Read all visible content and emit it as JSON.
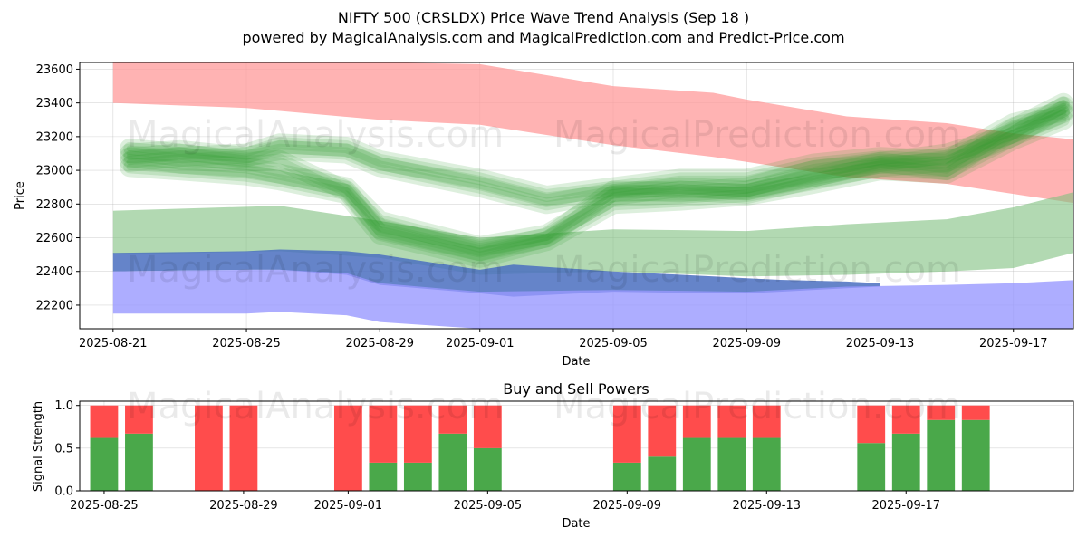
{
  "header": {
    "title": "NIFTY 500 (CRSLDX) Price Wave Trend Analysis (Sep 18 )",
    "subtitle": "powered by MagicalAnalysis.com and MagicalPrediction.com and Predict-Price.com"
  },
  "watermarks": [
    "MagicalAnalysis.com",
    "MagicalPrediction.com"
  ],
  "colors": {
    "upper_band": "#ff9999",
    "lower_band": "#9999ff",
    "middle_band": "#7fbf7f",
    "dark_band": "#4a6fc0",
    "wave": "#2e9a2e",
    "buy": "#4aa84a",
    "sell": "#ff4c4c"
  },
  "chart_data": [
    {
      "type": "area",
      "title": "",
      "xlabel": "Date",
      "ylabel": "Price",
      "x_ticks": [
        "2025-08-21",
        "2025-08-25",
        "2025-08-29",
        "2025-09-01",
        "2025-09-05",
        "2025-09-09",
        "2025-09-13",
        "2025-09-17"
      ],
      "y_ticks": [
        "22200",
        "22400",
        "22600",
        "22800",
        "23000",
        "23200",
        "23400",
        "23600"
      ],
      "ylim": [
        22060,
        23640
      ],
      "x_day_range": [
        -1.0,
        28.8
      ],
      "grid": true,
      "bands": [
        {
          "name": "upper-resistance-band",
          "color_key": "upper_band",
          "opacity": 0.75,
          "x": [
            0,
            4,
            8,
            11,
            15,
            18,
            19,
            22,
            25,
            27,
            29
          ],
          "upper": [
            23680,
            23660,
            23640,
            23630,
            23500,
            23460,
            23420,
            23320,
            23280,
            23220,
            23180
          ],
          "lower": [
            23400,
            23370,
            23300,
            23270,
            23150,
            23080,
            23050,
            22960,
            22920,
            22860,
            22800
          ]
        },
        {
          "name": "support-band-green",
          "color_key": "middle_band",
          "opacity": 0.6,
          "x": [
            0,
            5,
            8,
            11,
            15,
            19,
            22,
            25,
            27,
            29
          ],
          "upper": [
            22760,
            22790,
            22700,
            22600,
            22650,
            22640,
            22680,
            22710,
            22780,
            22880
          ],
          "lower": [
            22500,
            22520,
            22480,
            22380,
            22400,
            22370,
            22380,
            22400,
            22420,
            22520
          ]
        },
        {
          "name": "support-band-blue",
          "color_key": "dark_band",
          "opacity": 0.85,
          "x": [
            0,
            4,
            5,
            7,
            8,
            11,
            12,
            15,
            18,
            19,
            20,
            22,
            23
          ],
          "upper": [
            22510,
            22520,
            22530,
            22520,
            22500,
            22410,
            22440,
            22400,
            22370,
            22360,
            22350,
            22340,
            22330
          ],
          "lower": [
            22400,
            22410,
            22410,
            22380,
            22320,
            22270,
            22250,
            22280,
            22270,
            22270,
            22280,
            22300,
            22310
          ]
        },
        {
          "name": "lower-support-band",
          "color_key": "lower_band",
          "opacity": 0.8,
          "x": [
            0,
            4,
            5,
            7,
            8,
            11,
            15,
            19,
            22,
            25,
            27,
            29
          ],
          "upper": [
            22400,
            22410,
            22410,
            22390,
            22330,
            22280,
            22290,
            22280,
            22310,
            22320,
            22330,
            22350
          ],
          "lower": [
            22150,
            22150,
            22160,
            22140,
            22100,
            22060,
            22060,
            22060,
            22060,
            22060,
            22060,
            22060
          ]
        }
      ],
      "waves": [
        {
          "x": [
            0.5,
            2,
            4,
            5,
            7,
            8,
            11,
            13,
            15,
            17,
            19,
            21,
            23,
            25,
            27,
            28.5
          ],
          "y": [
            23100,
            23120,
            23080,
            23120,
            23100,
            23020,
            22900,
            22800,
            22870,
            22880,
            22860,
            22950,
            23020,
            23050,
            23200,
            23380
          ]
        },
        {
          "x": [
            0.5,
            2,
            4,
            5,
            7,
            8,
            11,
            13,
            15,
            17,
            19,
            21,
            23,
            25,
            27,
            28.5
          ],
          "y": [
            23080,
            23040,
            23020,
            22980,
            22900,
            22700,
            22550,
            22620,
            22850,
            22900,
            22880,
            22960,
            23050,
            23100,
            23220,
            23340
          ]
        },
        {
          "x": [
            0.5,
            2,
            4,
            5,
            7,
            8,
            11,
            13,
            15,
            17,
            19,
            21,
            23,
            25,
            27,
            28.5
          ],
          "y": [
            23130,
            23100,
            23050,
            23060,
            22880,
            22650,
            22520,
            22600,
            22880,
            22870,
            22900,
            23000,
            23050,
            23000,
            23250,
            23400
          ]
        },
        {
          "x": [
            0.5,
            2,
            4,
            5,
            7,
            8,
            11,
            13,
            15,
            17,
            19,
            21,
            23,
            25,
            27,
            28.5
          ],
          "y": [
            23050,
            23080,
            23100,
            23160,
            23140,
            23060,
            22950,
            22850,
            22900,
            22950,
            22950,
            23040,
            23080,
            23060,
            23280,
            23350
          ]
        },
        {
          "x": [
            0.5,
            2,
            4,
            5,
            7,
            8,
            11,
            13,
            15,
            17,
            19,
            21,
            23,
            25,
            27,
            28.5
          ],
          "y": [
            23020,
            23000,
            22970,
            22940,
            22860,
            22620,
            22480,
            22580,
            22800,
            22820,
            22850,
            22920,
            23000,
            22980,
            23180,
            23300
          ]
        }
      ]
    },
    {
      "type": "bar",
      "title": "Buy and Sell Powers",
      "xlabel": "Date",
      "ylabel": "Signal Strength",
      "x_ticks": [
        "2025-08-25",
        "2025-08-29",
        "2025-09-01",
        "2025-09-05",
        "2025-09-09",
        "2025-09-13",
        "2025-09-17"
      ],
      "y_ticks": [
        "0.0",
        "0.5",
        "1.0"
      ],
      "ylim": [
        0,
        1.05
      ],
      "x_day_range": [
        -0.7,
        27.8
      ],
      "grid": true,
      "bar_x": [
        0,
        1,
        3,
        4,
        7,
        8,
        9,
        10,
        11,
        15,
        16,
        17,
        18,
        19,
        22,
        23,
        24,
        25
      ],
      "buy": [
        0.62,
        0.67,
        0.0,
        0.0,
        0.0,
        0.33,
        0.33,
        0.67,
        0.5,
        0.33,
        0.4,
        0.62,
        0.62,
        0.62,
        0.56,
        0.67,
        0.83,
        0.83
      ],
      "sell": [
        0.38,
        0.33,
        1.0,
        1.0,
        1.0,
        0.67,
        0.67,
        0.33,
        0.5,
        0.67,
        0.6,
        0.38,
        0.38,
        0.38,
        0.44,
        0.33,
        0.17,
        0.17
      ]
    }
  ]
}
